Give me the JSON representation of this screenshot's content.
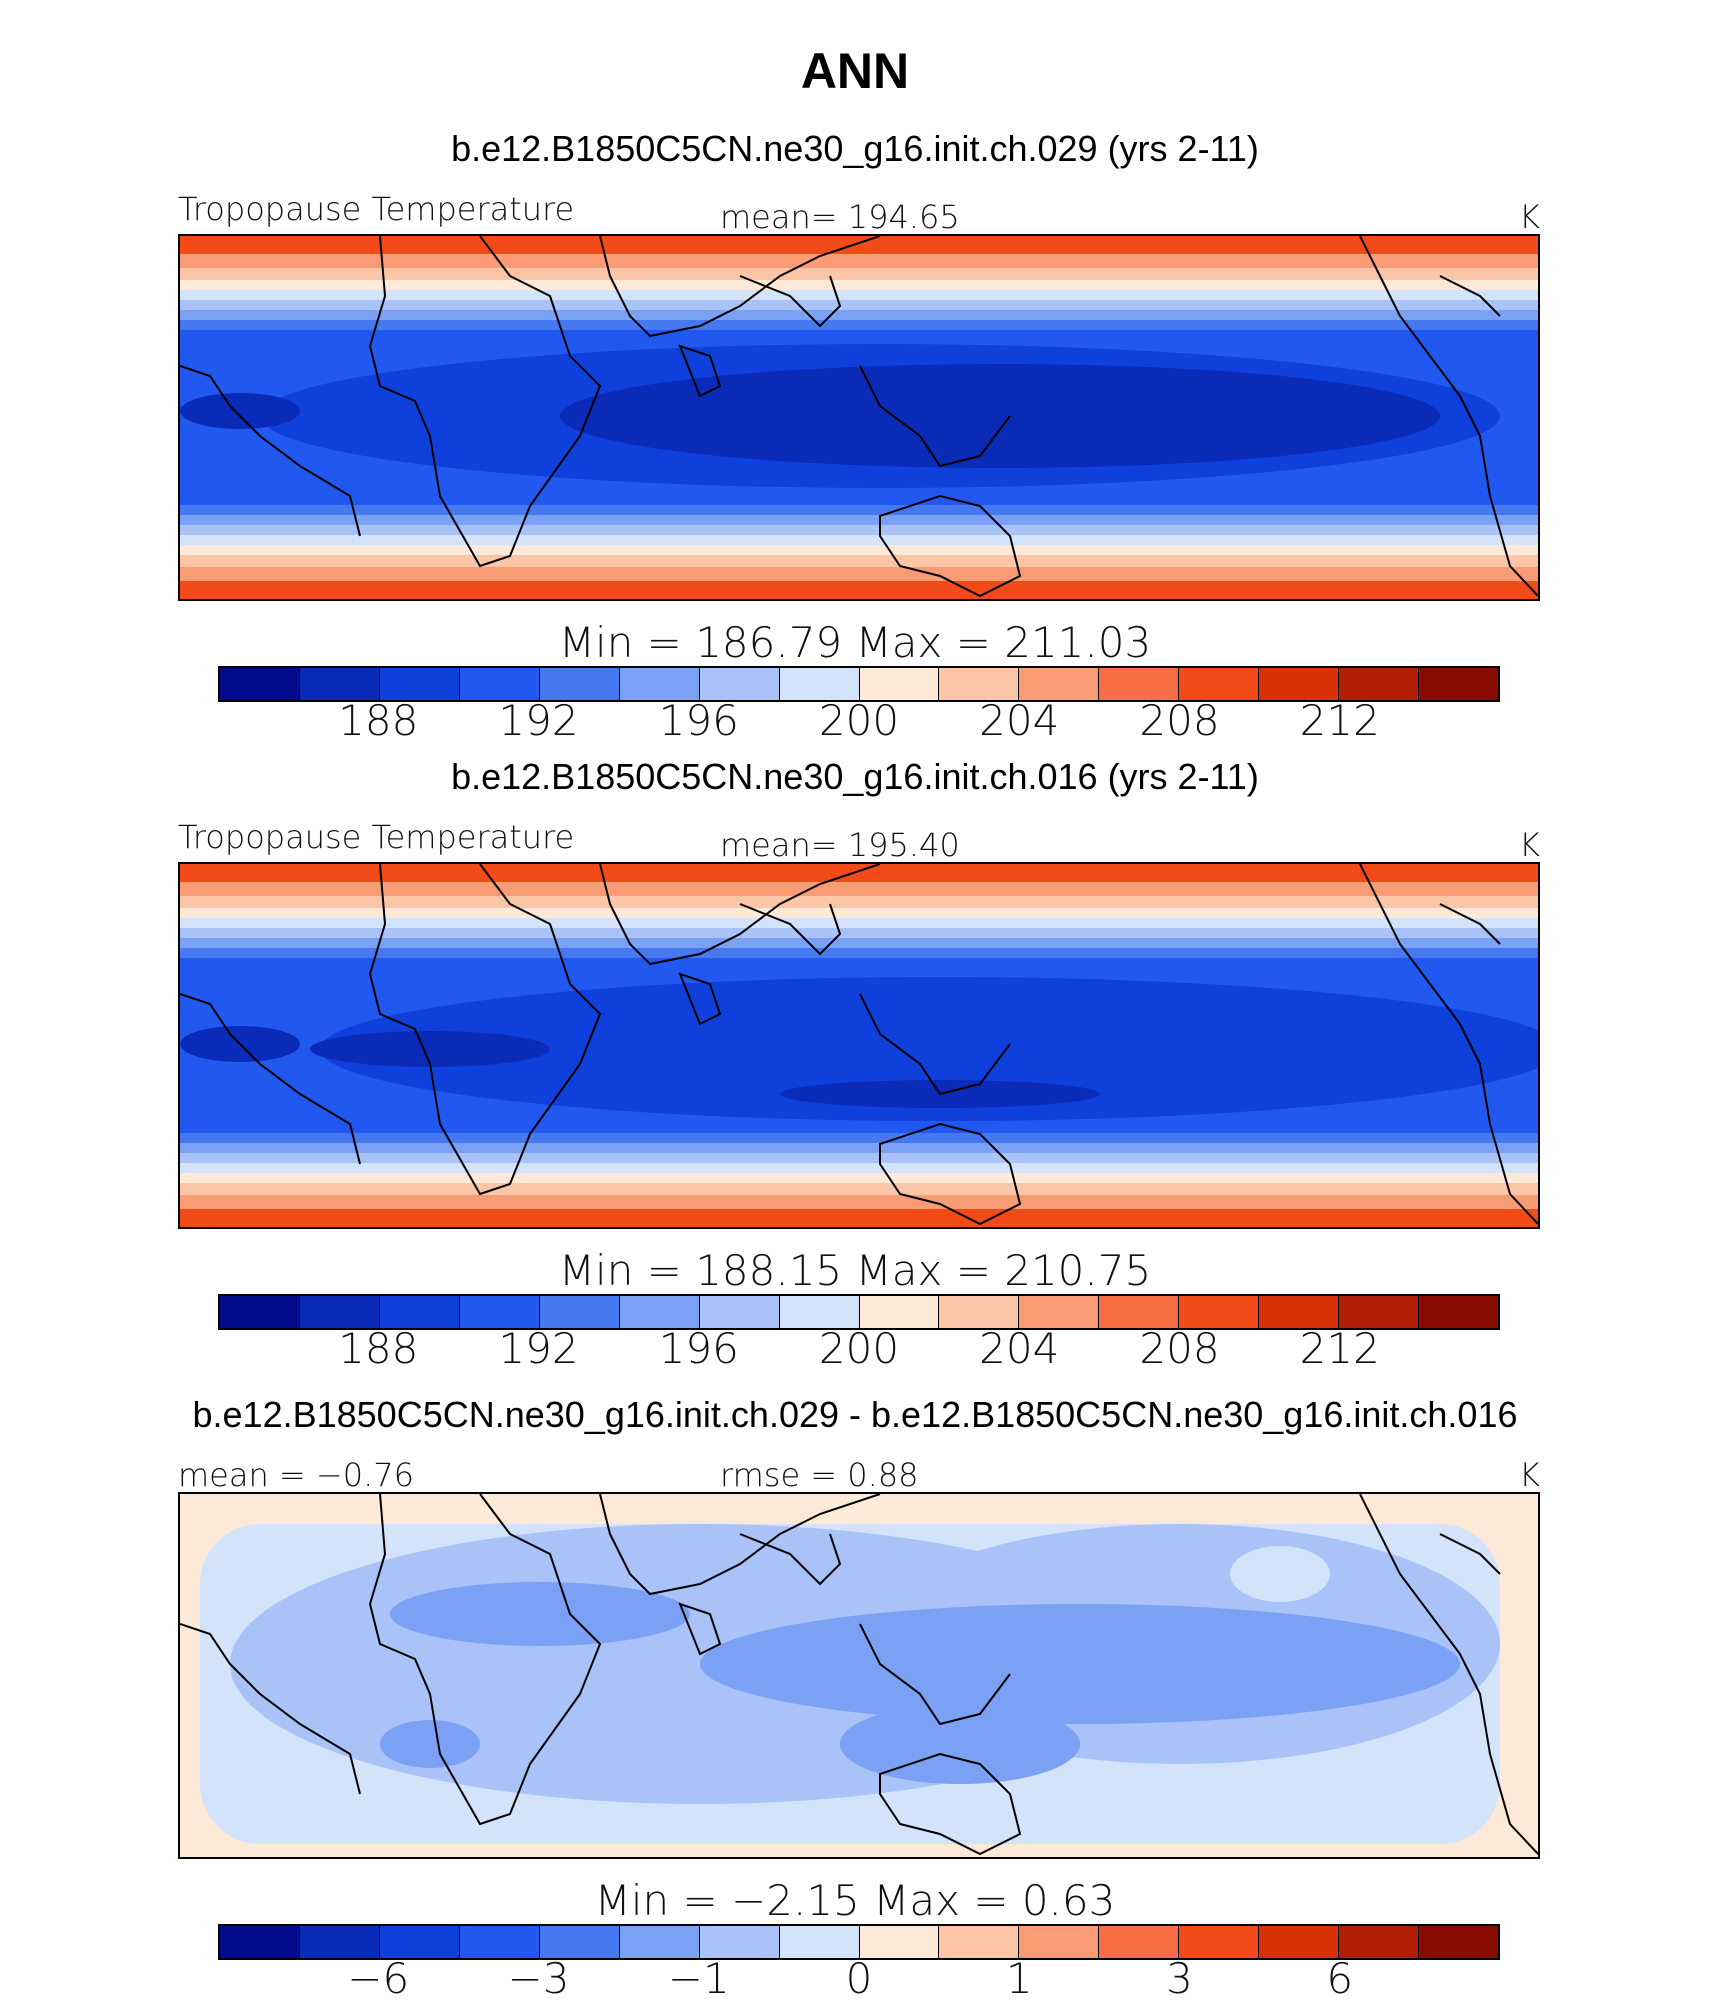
{
  "title": "ANN",
  "panels": [
    {
      "case": "b.e12.B1850C5CN.ne30_g16.init.ch.029 (yrs 2-11)",
      "variable": "Tropopause Temperature",
      "stat": "mean=  194.65",
      "unit": "K",
      "minmax": "Min  =  186.79  Max  =  211.03",
      "ticks": [
        "188",
        "192",
        "196",
        "200",
        "204",
        "208",
        "212"
      ],
      "field": "abs1"
    },
    {
      "case": "b.e12.B1850C5CN.ne30_g16.init.ch.016 (yrs 2-11)",
      "variable": "Tropopause Temperature",
      "stat": "mean=  195.40",
      "unit": "K",
      "minmax": "Min  =  188.15  Max  =  210.75",
      "ticks": [
        "188",
        "192",
        "196",
        "200",
        "204",
        "208",
        "212"
      ],
      "field": "abs2"
    },
    {
      "case": "b.e12.B1850C5CN.ne30_g16.init.ch.029 - b.e12.B1850C5CN.ne30_g16.init.ch.016",
      "variable": "mean  =   −0.76",
      "stat": "rmse  =     0.88",
      "unit": "K",
      "minmax": "Min  =    −2.15  Max  =     0.63",
      "ticks": [
        "−6",
        "−3",
        "−1",
        "0",
        "1",
        "3",
        "6"
      ],
      "field": "diff"
    }
  ],
  "colorbar_colors": [
    "#020c8c",
    "#0a2bb8",
    "#0f40dc",
    "#2158f0",
    "#4679f0",
    "#7ba1f5",
    "#a9c2f7",
    "#d3e3fa",
    "#fde9d7",
    "#fbc6a7",
    "#f99c76",
    "#f86d43",
    "#f34a1a",
    "#d93108",
    "#b21d05",
    "#8a0b02"
  ],
  "map_colors": {
    "abs1": [
      "#fde9d7",
      "#fbc6a7",
      "#f86d43",
      "#a9c2f7",
      "#2158f0",
      "#0f40dc",
      "#020c8c"
    ],
    "abs2": [
      "#fde9d7",
      "#fbc6a7",
      "#f86d43",
      "#a9c2f7",
      "#2158f0",
      "#0f40dc",
      "#0a2bb8"
    ],
    "diff": [
      "#fde9d7",
      "#d3e3fa",
      "#a9c2f7",
      "#7ba1f5"
    ]
  }
}
